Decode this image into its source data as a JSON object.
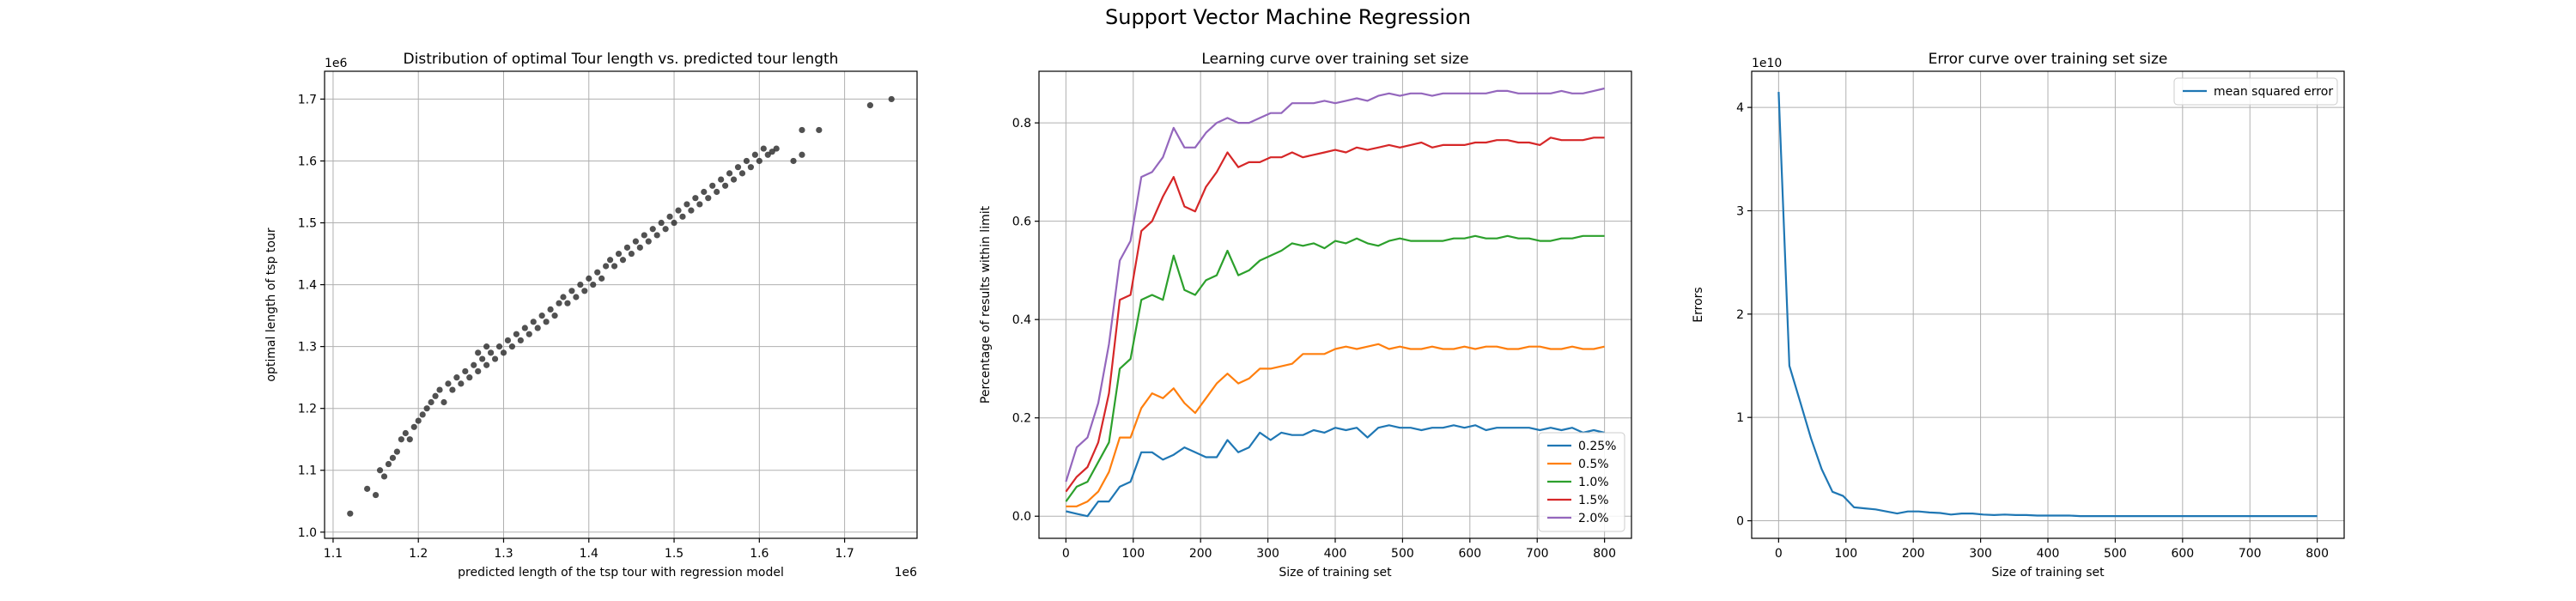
{
  "figure": {
    "suptitle": "Support Vector Machine Regression"
  },
  "chart_data": [
    {
      "type": "scatter",
      "title": "Distribution of optimal Tour length vs. predicted tour length",
      "xlabel": "predicted length of the tsp tour with regression model",
      "ylabel": "optimal length of tsp tour",
      "x_offset_label": "1e6",
      "y_offset_label": "1e6",
      "xlim": [
        1.09,
        1.785
      ],
      "ylim": [
        0.99,
        1.745
      ],
      "xticks": [
        1.1,
        1.2,
        1.3,
        1.4,
        1.5,
        1.6,
        1.7
      ],
      "xtick_labels": [
        "1.1",
        "1.2",
        "1.3",
        "1.4",
        "1.5",
        "1.6",
        "1.7"
      ],
      "yticks": [
        1.0,
        1.1,
        1.2,
        1.3,
        1.4,
        1.5,
        1.6,
        1.7
      ],
      "ytick_labels": [
        "1.0",
        "1.1",
        "1.2",
        "1.3",
        "1.4",
        "1.5",
        "1.6",
        "1.7"
      ],
      "grid": true,
      "point_color": "#333333",
      "points": [
        [
          1.12,
          1.03
        ],
        [
          1.14,
          1.07
        ],
        [
          1.15,
          1.06
        ],
        [
          1.155,
          1.1
        ],
        [
          1.16,
          1.09
        ],
        [
          1.165,
          1.11
        ],
        [
          1.17,
          1.12
        ],
        [
          1.175,
          1.13
        ],
        [
          1.18,
          1.15
        ],
        [
          1.185,
          1.16
        ],
        [
          1.19,
          1.15
        ],
        [
          1.195,
          1.17
        ],
        [
          1.2,
          1.18
        ],
        [
          1.205,
          1.19
        ],
        [
          1.21,
          1.2
        ],
        [
          1.215,
          1.21
        ],
        [
          1.22,
          1.22
        ],
        [
          1.225,
          1.23
        ],
        [
          1.23,
          1.21
        ],
        [
          1.235,
          1.24
        ],
        [
          1.24,
          1.23
        ],
        [
          1.245,
          1.25
        ],
        [
          1.25,
          1.24
        ],
        [
          1.255,
          1.26
        ],
        [
          1.26,
          1.25
        ],
        [
          1.265,
          1.27
        ],
        [
          1.27,
          1.26
        ],
        [
          1.275,
          1.28
        ],
        [
          1.28,
          1.27
        ],
        [
          1.285,
          1.29
        ],
        [
          1.29,
          1.28
        ],
        [
          1.295,
          1.3
        ],
        [
          1.27,
          1.29
        ],
        [
          1.28,
          1.3
        ],
        [
          1.3,
          1.29
        ],
        [
          1.305,
          1.31
        ],
        [
          1.31,
          1.3
        ],
        [
          1.315,
          1.32
        ],
        [
          1.32,
          1.31
        ],
        [
          1.325,
          1.33
        ],
        [
          1.33,
          1.32
        ],
        [
          1.335,
          1.34
        ],
        [
          1.34,
          1.33
        ],
        [
          1.345,
          1.35
        ],
        [
          1.35,
          1.34
        ],
        [
          1.355,
          1.36
        ],
        [
          1.36,
          1.35
        ],
        [
          1.365,
          1.37
        ],
        [
          1.37,
          1.38
        ],
        [
          1.375,
          1.37
        ],
        [
          1.38,
          1.39
        ],
        [
          1.385,
          1.38
        ],
        [
          1.39,
          1.4
        ],
        [
          1.395,
          1.39
        ],
        [
          1.4,
          1.41
        ],
        [
          1.405,
          1.4
        ],
        [
          1.41,
          1.42
        ],
        [
          1.415,
          1.41
        ],
        [
          1.42,
          1.43
        ],
        [
          1.425,
          1.44
        ],
        [
          1.43,
          1.43
        ],
        [
          1.435,
          1.45
        ],
        [
          1.44,
          1.44
        ],
        [
          1.445,
          1.46
        ],
        [
          1.45,
          1.45
        ],
        [
          1.455,
          1.47
        ],
        [
          1.46,
          1.46
        ],
        [
          1.465,
          1.48
        ],
        [
          1.47,
          1.47
        ],
        [
          1.475,
          1.49
        ],
        [
          1.48,
          1.48
        ],
        [
          1.485,
          1.5
        ],
        [
          1.49,
          1.49
        ],
        [
          1.495,
          1.51
        ],
        [
          1.5,
          1.5
        ],
        [
          1.505,
          1.52
        ],
        [
          1.51,
          1.51
        ],
        [
          1.515,
          1.53
        ],
        [
          1.52,
          1.52
        ],
        [
          1.525,
          1.54
        ],
        [
          1.53,
          1.53
        ],
        [
          1.535,
          1.55
        ],
        [
          1.54,
          1.54
        ],
        [
          1.545,
          1.56
        ],
        [
          1.55,
          1.55
        ],
        [
          1.555,
          1.57
        ],
        [
          1.56,
          1.56
        ],
        [
          1.565,
          1.58
        ],
        [
          1.57,
          1.57
        ],
        [
          1.575,
          1.59
        ],
        [
          1.58,
          1.58
        ],
        [
          1.585,
          1.6
        ],
        [
          1.59,
          1.59
        ],
        [
          1.595,
          1.61
        ],
        [
          1.6,
          1.6
        ],
        [
          1.605,
          1.62
        ],
        [
          1.61,
          1.61
        ],
        [
          1.615,
          1.615
        ],
        [
          1.62,
          1.62
        ],
        [
          1.64,
          1.6
        ],
        [
          1.65,
          1.61
        ],
        [
          1.65,
          1.65
        ],
        [
          1.67,
          1.65
        ],
        [
          1.73,
          1.69
        ],
        [
          1.755,
          1.7
        ]
      ]
    },
    {
      "type": "line",
      "title": "Learning curve over training set size",
      "xlabel": "Size of training set",
      "ylabel": "Percentage of results within limit",
      "xlim": [
        -40,
        840
      ],
      "ylim": [
        -0.045,
        0.905
      ],
      "xticks": [
        0,
        100,
        200,
        300,
        400,
        500,
        600,
        700,
        800
      ],
      "xtick_labels": [
        "0",
        "100",
        "200",
        "300",
        "400",
        "500",
        "600",
        "700",
        "800"
      ],
      "yticks": [
        0.0,
        0.2,
        0.4,
        0.6,
        0.8
      ],
      "ytick_labels": [
        "0.0",
        "0.2",
        "0.4",
        "0.6",
        "0.8"
      ],
      "grid": true,
      "legend_position": "lower right",
      "x": [
        0,
        16,
        32,
        48,
        64,
        80,
        96,
        112,
        128,
        144,
        160,
        176,
        192,
        208,
        224,
        240,
        256,
        272,
        288,
        304,
        320,
        336,
        352,
        368,
        384,
        400,
        416,
        432,
        448,
        464,
        480,
        496,
        512,
        528,
        544,
        560,
        576,
        592,
        608,
        624,
        640,
        656,
        672,
        688,
        704,
        720,
        736,
        752,
        768,
        784,
        800
      ],
      "series": [
        {
          "name": "0.25%",
          "color": "#1f77b4",
          "values": [
            0.01,
            0.005,
            0.0,
            0.03,
            0.03,
            0.06,
            0.07,
            0.13,
            0.13,
            0.115,
            0.125,
            0.14,
            0.13,
            0.12,
            0.12,
            0.155,
            0.13,
            0.14,
            0.17,
            0.155,
            0.17,
            0.165,
            0.165,
            0.175,
            0.17,
            0.18,
            0.175,
            0.18,
            0.16,
            0.18,
            0.185,
            0.18,
            0.18,
            0.175,
            0.18,
            0.18,
            0.185,
            0.18,
            0.185,
            0.175,
            0.18,
            0.18,
            0.18,
            0.18,
            0.175,
            0.18,
            0.175,
            0.18,
            0.17,
            0.175,
            0.17
          ]
        },
        {
          "name": "0.5%",
          "color": "#ff7f0e",
          "values": [
            0.02,
            0.02,
            0.03,
            0.05,
            0.09,
            0.16,
            0.16,
            0.22,
            0.25,
            0.24,
            0.26,
            0.23,
            0.21,
            0.24,
            0.27,
            0.29,
            0.27,
            0.28,
            0.3,
            0.3,
            0.305,
            0.31,
            0.33,
            0.33,
            0.33,
            0.34,
            0.345,
            0.34,
            0.345,
            0.35,
            0.34,
            0.345,
            0.34,
            0.34,
            0.345,
            0.34,
            0.34,
            0.345,
            0.34,
            0.345,
            0.345,
            0.34,
            0.34,
            0.345,
            0.345,
            0.34,
            0.34,
            0.345,
            0.34,
            0.34,
            0.345
          ]
        },
        {
          "name": "1.0%",
          "color": "#2ca02c",
          "values": [
            0.03,
            0.06,
            0.07,
            0.11,
            0.15,
            0.3,
            0.32,
            0.44,
            0.45,
            0.44,
            0.53,
            0.46,
            0.45,
            0.48,
            0.49,
            0.54,
            0.49,
            0.5,
            0.52,
            0.53,
            0.54,
            0.555,
            0.55,
            0.555,
            0.545,
            0.56,
            0.555,
            0.565,
            0.555,
            0.55,
            0.56,
            0.565,
            0.56,
            0.56,
            0.56,
            0.56,
            0.565,
            0.565,
            0.57,
            0.565,
            0.565,
            0.57,
            0.565,
            0.565,
            0.56,
            0.56,
            0.565,
            0.565,
            0.57,
            0.57,
            0.57
          ]
        },
        {
          "name": "1.5%",
          "color": "#d62728",
          "values": [
            0.05,
            0.08,
            0.1,
            0.15,
            0.25,
            0.44,
            0.45,
            0.58,
            0.6,
            0.65,
            0.69,
            0.63,
            0.62,
            0.67,
            0.7,
            0.74,
            0.71,
            0.72,
            0.72,
            0.73,
            0.73,
            0.74,
            0.73,
            0.735,
            0.74,
            0.745,
            0.74,
            0.75,
            0.745,
            0.75,
            0.755,
            0.75,
            0.755,
            0.76,
            0.75,
            0.755,
            0.755,
            0.755,
            0.76,
            0.76,
            0.765,
            0.765,
            0.76,
            0.76,
            0.755,
            0.77,
            0.765,
            0.765,
            0.765,
            0.77,
            0.77
          ]
        },
        {
          "name": "2.0%",
          "color": "#9467bd",
          "values": [
            0.07,
            0.14,
            0.16,
            0.23,
            0.35,
            0.52,
            0.56,
            0.69,
            0.7,
            0.73,
            0.79,
            0.75,
            0.75,
            0.78,
            0.8,
            0.81,
            0.8,
            0.8,
            0.81,
            0.82,
            0.82,
            0.84,
            0.84,
            0.84,
            0.845,
            0.84,
            0.845,
            0.85,
            0.845,
            0.855,
            0.86,
            0.855,
            0.86,
            0.86,
            0.855,
            0.86,
            0.86,
            0.86,
            0.86,
            0.86,
            0.865,
            0.865,
            0.86,
            0.86,
            0.86,
            0.86,
            0.865,
            0.86,
            0.86,
            0.865,
            0.87
          ]
        }
      ]
    },
    {
      "type": "line",
      "title": "Error curve over training set size",
      "xlabel": "Size of training set",
      "ylabel": "Errors",
      "y_offset_label": "1e10",
      "xlim": [
        -40,
        840
      ],
      "ylim": [
        -0.17,
        4.35
      ],
      "xticks": [
        0,
        100,
        200,
        300,
        400,
        500,
        600,
        700,
        800
      ],
      "xtick_labels": [
        "0",
        "100",
        "200",
        "300",
        "400",
        "500",
        "600",
        "700",
        "800"
      ],
      "yticks": [
        0,
        1,
        2,
        3,
        4
      ],
      "ytick_labels": [
        "0",
        "1",
        "2",
        "3",
        "4"
      ],
      "grid": true,
      "legend_position": "upper right",
      "x": [
        0,
        16,
        32,
        48,
        64,
        80,
        96,
        112,
        128,
        144,
        160,
        176,
        192,
        208,
        224,
        240,
        256,
        272,
        288,
        304,
        320,
        336,
        352,
        368,
        384,
        400,
        416,
        432,
        448,
        464,
        480,
        496,
        512,
        528,
        544,
        560,
        576,
        592,
        608,
        624,
        640,
        656,
        672,
        688,
        704,
        720,
        736,
        752,
        768,
        784,
        800
      ],
      "series": [
        {
          "name": "mean squared error",
          "color": "#1f77b4",
          "values": [
            4.15,
            1.5,
            1.15,
            0.8,
            0.5,
            0.28,
            0.24,
            0.13,
            0.12,
            0.11,
            0.09,
            0.07,
            0.09,
            0.09,
            0.08,
            0.075,
            0.06,
            0.07,
            0.07,
            0.06,
            0.055,
            0.06,
            0.055,
            0.055,
            0.05,
            0.05,
            0.05,
            0.05,
            0.045,
            0.045,
            0.045,
            0.045,
            0.045,
            0.045,
            0.045,
            0.045,
            0.045,
            0.045,
            0.045,
            0.045,
            0.045,
            0.045,
            0.045,
            0.045,
            0.045,
            0.045,
            0.045,
            0.045,
            0.045,
            0.045,
            0.045
          ]
        }
      ]
    }
  ]
}
